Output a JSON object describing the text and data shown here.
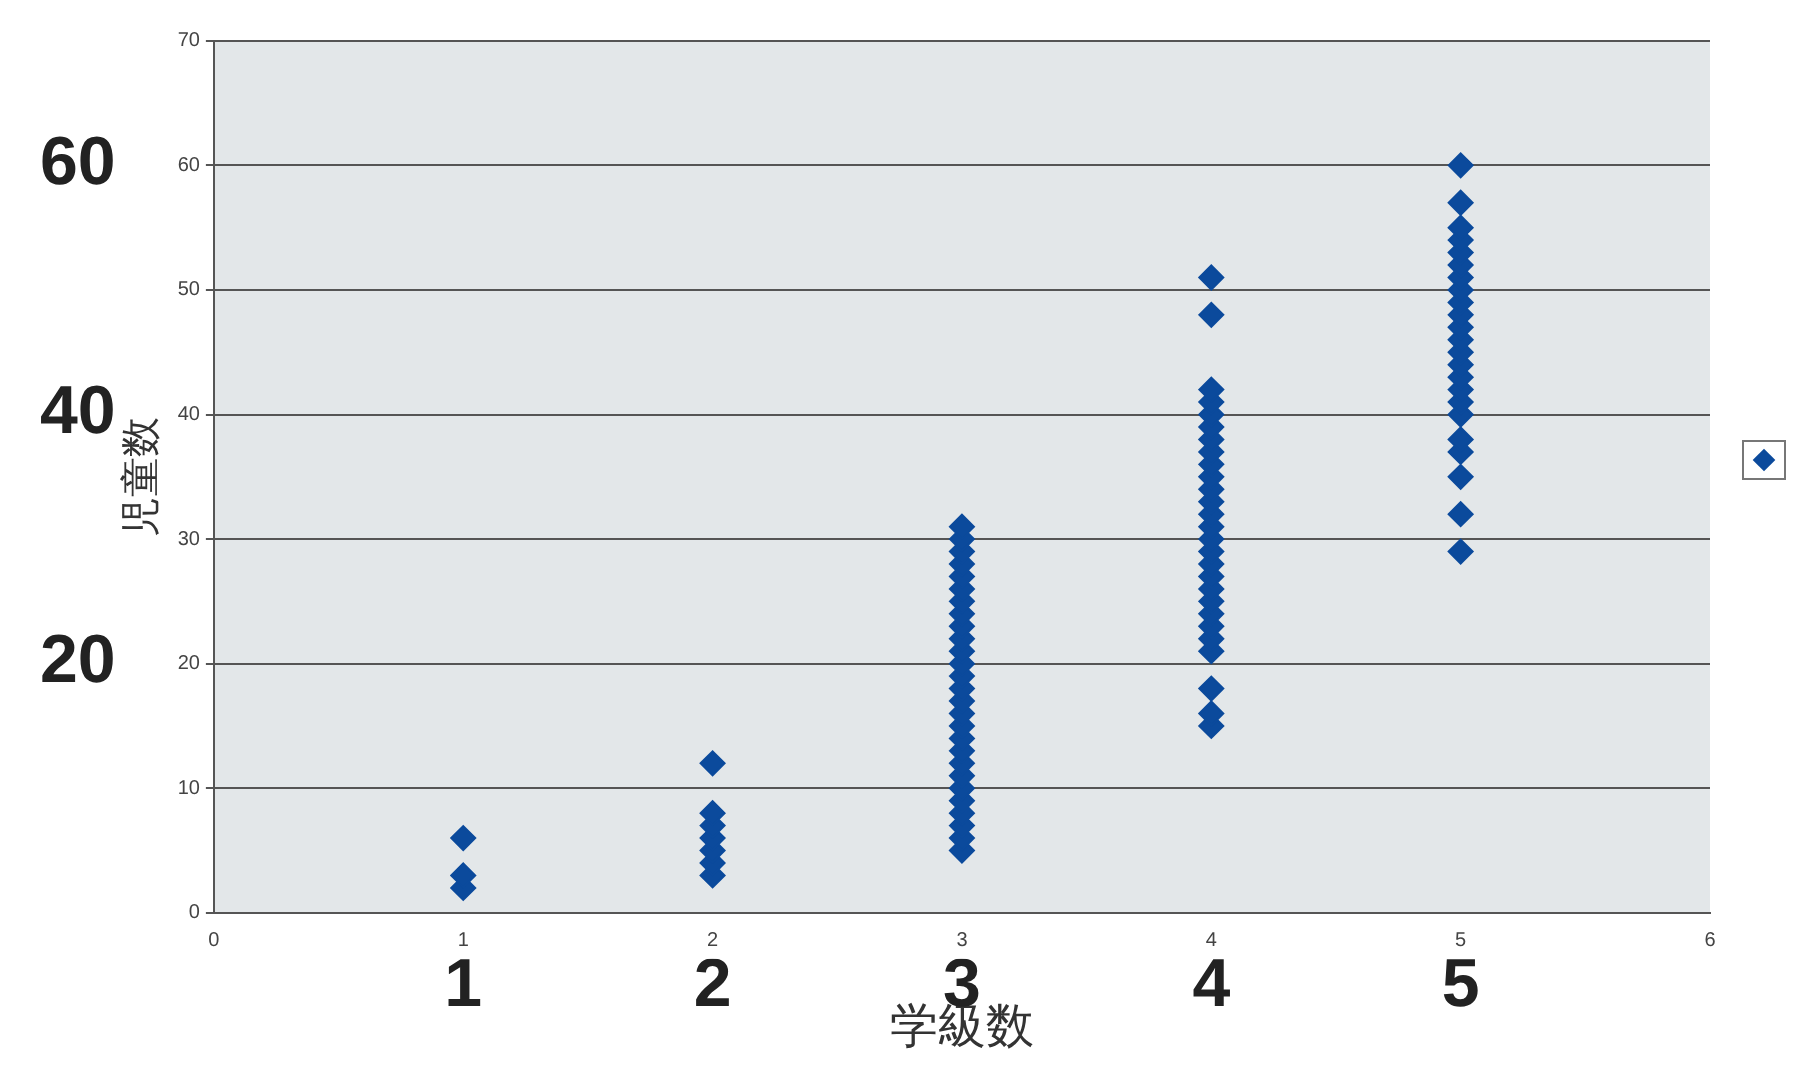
{
  "chart_data": {
    "type": "scatter",
    "xlabel": "学級数",
    "ylabel": "児童数",
    "xlim": [
      0,
      6
    ],
    "xticks": [
      0,
      1,
      2,
      3,
      4,
      5,
      6
    ],
    "x2lim": [
      0,
      6
    ],
    "x2ticks": [
      1,
      2,
      3,
      4,
      5
    ],
    "ylim": [
      0,
      70
    ],
    "yticks": [
      0,
      10,
      20,
      30,
      40,
      50,
      60,
      70
    ],
    "y2lim": [
      0,
      70
    ],
    "y2ticks": [
      20,
      40,
      60
    ],
    "grid": "y",
    "marker": "diamond",
    "series": [
      {
        "color": "#0b4a9c",
        "x": [
          1,
          1,
          1,
          2,
          2,
          2,
          2,
          2,
          2,
          2,
          3,
          3,
          3,
          3,
          3,
          3,
          3,
          3,
          3,
          3,
          3,
          3,
          3,
          3,
          3,
          3,
          3,
          3,
          3,
          3,
          3,
          3,
          3,
          3,
          3,
          3,
          3,
          4,
          4,
          4,
          4,
          4,
          4,
          4,
          4,
          4,
          4,
          4,
          4,
          4,
          4,
          4,
          4,
          4,
          4,
          4,
          4,
          4,
          4,
          4,
          4,
          4,
          4,
          4,
          5,
          5,
          5,
          5,
          5,
          5,
          5,
          5,
          5,
          5,
          5,
          5,
          5,
          5,
          5,
          5,
          5,
          5,
          5,
          5,
          5,
          5,
          5
        ],
        "values": [
          2,
          3,
          6,
          3,
          4,
          5,
          6,
          7,
          8,
          12,
          5,
          6,
          7,
          8,
          9,
          10,
          11,
          12,
          13,
          14,
          15,
          16,
          17,
          18,
          19,
          20,
          21,
          22,
          23,
          24,
          25,
          26,
          27,
          28,
          29,
          30,
          31,
          15,
          16,
          18,
          21,
          22,
          23,
          24,
          25,
          26,
          27,
          28,
          29,
          30,
          31,
          32,
          33,
          34,
          35,
          36,
          37,
          38,
          39,
          40,
          41,
          42,
          48,
          51,
          29,
          32,
          35,
          37,
          38,
          40,
          41,
          42,
          43,
          44,
          45,
          46,
          47,
          48,
          49,
          50,
          51,
          52,
          53,
          54,
          55,
          57,
          60
        ]
      }
    ]
  }
}
